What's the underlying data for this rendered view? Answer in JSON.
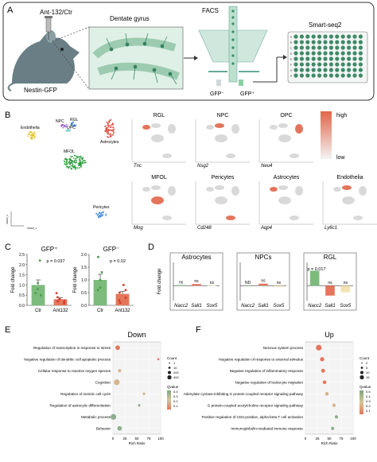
{
  "panels": {
    "A": {
      "letter": "A",
      "injection_label": "Ant-132/Ctr",
      "mouse_label": "Nestin-GFP",
      "region_label": "Dentate gyrus",
      "sort_label": "FACS",
      "gfp_neg_label": "GFP⁻",
      "gfp_pos_label": "GFP⁺",
      "seq_label": "Smart-seq2",
      "plate_rows": [
        "A",
        "B",
        "C",
        "D",
        "E",
        "F",
        "G",
        "H"
      ]
    },
    "B": {
      "letter": "B",
      "cluster_labels": [
        "NPC",
        "RGL",
        "OPC",
        "Endothelia",
        "Astrocytes",
        "MFOL",
        "Pericytes"
      ],
      "umap_x": "UMAP_1",
      "umap_y": "UMAP_2",
      "legend_high": "high",
      "legend_low": "low",
      "markers": [
        {
          "title": "RGL",
          "gene": "Tnc"
        },
        {
          "title": "NPC",
          "gene": "Nsg2"
        },
        {
          "title": "OPC",
          "gene": "Neu4"
        },
        {
          "title": "MFOL",
          "gene": "Mog"
        },
        {
          "title": "Pericytes",
          "gene": "Cd248"
        },
        {
          "title": "Astrocytes",
          "gene": "Aqp4"
        },
        {
          "title": "Endothelia",
          "gene": "Ly6c1"
        }
      ]
    },
    "C": {
      "letter": "C"
    },
    "D": {
      "letter": "D"
    },
    "E": {
      "letter": "E"
    },
    "F": {
      "letter": "F"
    }
  },
  "chart_data": [
    {
      "type": "bar",
      "title": "GFP⁺",
      "ylabel": "Fold change",
      "categories": [
        "Ctr",
        "Ant132"
      ],
      "values": [
        1.0,
        0.3
      ],
      "colors": [
        "#7cbb7c",
        "#e4765b"
      ],
      "ylim": [
        0,
        2.5
      ],
      "yticks": [
        "0.0",
        "0.5",
        "1.0",
        "1.5",
        "2.0",
        "2.5"
      ],
      "pvalue": "p = 0.037"
    },
    {
      "type": "bar",
      "title": "GFP⁻",
      "ylabel": "Fold change",
      "categories": [
        "Ctr",
        "Ant132"
      ],
      "values": [
        1.0,
        0.45
      ],
      "colors": [
        "#7cbb7c",
        "#e4765b"
      ],
      "ylim": [
        0,
        2.0
      ],
      "yticks": [
        "0.0",
        "0.5",
        "1.0",
        "1.5",
        "2.0"
      ],
      "pvalue": "p = 0.02"
    },
    {
      "type": "bar",
      "title": "Astrocytes",
      "ylabel": "Fold change",
      "categories": [
        "Nacc2",
        "Sall1",
        "Sox5"
      ],
      "values": [
        0.02,
        0.05,
        0.01
      ],
      "colors": [
        "#7cbb7c",
        "#e4765b",
        "#f3e3b3"
      ],
      "labels": [
        "ns",
        "ns",
        "ns"
      ]
    },
    {
      "type": "bar",
      "title": "NPCs",
      "categories": [
        "Nacc2",
        "Sall1",
        "Sox5"
      ],
      "values": [
        0.0,
        0.06,
        -0.03
      ],
      "colors": [
        "#7cbb7c",
        "#e4765b",
        "#f3e3b3"
      ],
      "labels": [
        "ND",
        "ns",
        "ns"
      ]
    },
    {
      "type": "bar",
      "title": "RGL",
      "categories": [
        "Nacc2",
        "Sall1",
        "Sox5"
      ],
      "values": [
        0.45,
        -0.3,
        -0.2
      ],
      "colors": [
        "#7cbb7c",
        "#e4765b",
        "#f3e3b3"
      ],
      "labels": [
        "",
        "ns",
        "ns"
      ],
      "pvalue": "p = 0.017"
    },
    {
      "type": "scatter",
      "title": "Down",
      "xlabel": "Rich Ratio",
      "xticks": [
        "0",
        "25",
        "50",
        "75",
        "100"
      ],
      "xlim": [
        0,
        100
      ],
      "terms": [
        {
          "term": "Regulation of transcription in response to stress",
          "rich": 10,
          "size": 200,
          "q": 0.1
        },
        {
          "term": "Negative regulation of dendritic cell apoptotic process",
          "rich": 95,
          "size": 1,
          "q": 0.15
        },
        {
          "term": "Cellular response to reactive oxygen species",
          "rich": 14,
          "size": 50,
          "q": 0.2
        },
        {
          "term": "Cognition",
          "rich": 8,
          "size": 400,
          "q": 0.25
        },
        {
          "term": "Regulation of meiotic cell cycle",
          "rich": 65,
          "size": 10,
          "q": 0.3
        },
        {
          "term": "Regulation of astrocytic differentiation",
          "rich": 55,
          "size": 10,
          "q": 0.32
        },
        {
          "term": "Metabolic process",
          "rich": 1,
          "size": 400,
          "q": 0.38
        },
        {
          "term": "Behavior",
          "rich": 14,
          "size": 200,
          "q": 0.42
        }
      ],
      "size_legend_title": "Count",
      "size_legend": [
        "1",
        "10",
        "200",
        "400"
      ],
      "color_legend_title": "Qvalue",
      "color_legend": [
        "0.4",
        "0.3",
        "0.2",
        "0.1"
      ]
    },
    {
      "type": "scatter",
      "title": "Up",
      "xlabel": "Rich Ratio",
      "xticks": [
        "0",
        "25",
        "50",
        "75",
        "100"
      ],
      "xlim": [
        0,
        100
      ],
      "terms": [
        {
          "term": "Nervous system process",
          "rich": 28,
          "size": 15,
          "q": 0.05
        },
        {
          "term": "Negative regulation of response to external stimulus",
          "rich": 35,
          "size": 5,
          "q": 0.08
        },
        {
          "term": "Negative regulation of inflammatory response",
          "rich": 37,
          "size": 4,
          "q": 0.1
        },
        {
          "term": "Negative regulation of leukocyte migration",
          "rich": 40,
          "size": 3,
          "q": 0.15
        },
        {
          "term": "Adenylate cyclase-inhibiting G protein-coupled receptor signaling pathway",
          "rich": 45,
          "size": 3,
          "q": 0.2
        },
        {
          "term": "G protein-coupled acetylcholine receptor signaling pathway",
          "rich": 60,
          "size": 2,
          "q": 0.3
        },
        {
          "term": "Positive regulation of CD4-positive, alpha-beta T cell activation",
          "rich": 65,
          "size": 2,
          "q": 0.4
        },
        {
          "term": "Immunoglobulin-mediated immune response",
          "rich": 57,
          "size": 2,
          "q": 0.45
        }
      ],
      "size_legend_title": "Count",
      "size_legend": [
        "2",
        "5",
        "10",
        "15"
      ],
      "color_legend_title": "Qvalue",
      "color_legend": [
        "0.5",
        "0.4",
        "0.3",
        "0.2",
        "0.1"
      ]
    }
  ]
}
